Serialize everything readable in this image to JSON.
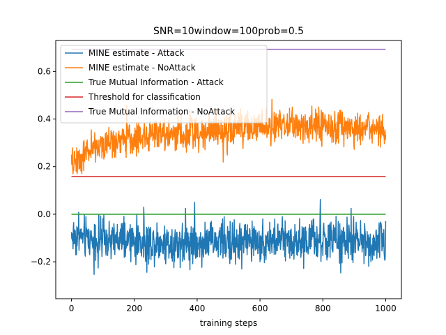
{
  "chart_data": {
    "type": "line",
    "title": "SNR=10window=100prob=0.5",
    "xlabel": "training steps",
    "ylabel": "",
    "xlim": [
      -50,
      1050
    ],
    "ylim": [
      -0.355,
      0.73
    ],
    "xticks": [
      0,
      200,
      400,
      600,
      800,
      1000
    ],
    "xtick_labels": [
      "0",
      "200",
      "400",
      "600",
      "800",
      "1000"
    ],
    "yticks": [
      -0.2,
      0.0,
      0.2,
      0.4,
      0.6
    ],
    "ytick_labels": [
      "−0.2",
      "0.0",
      "0.2",
      "0.4",
      "0.6"
    ],
    "grid": false,
    "legend_position": "top-left",
    "series": [
      {
        "name": "MINE estimate - Attack",
        "color": "#1f77b4",
        "kind": "noisy",
        "n": 1000,
        "base": [
          [
            0,
            -0.09
          ],
          [
            50,
            -0.1
          ],
          [
            100,
            -0.11
          ],
          [
            300,
            -0.12
          ],
          [
            500,
            -0.115
          ],
          [
            700,
            -0.11
          ],
          [
            900,
            -0.115
          ],
          [
            1000,
            -0.12
          ]
        ],
        "noise_amp": 0.075,
        "min": -0.3,
        "max": 0.07
      },
      {
        "name": "MINE estimate - NoAttack",
        "color": "#ff7f0e",
        "kind": "noisy",
        "n": 1000,
        "base": [
          [
            0,
            0.2
          ],
          [
            20,
            0.23
          ],
          [
            60,
            0.27
          ],
          [
            120,
            0.3
          ],
          [
            200,
            0.32
          ],
          [
            300,
            0.34
          ],
          [
            450,
            0.35
          ],
          [
            600,
            0.37
          ],
          [
            800,
            0.37
          ],
          [
            1000,
            0.35
          ]
        ],
        "noise_amp": 0.06,
        "min": 0.17,
        "max": 0.53
      },
      {
        "name": "True Mutual Information - Attack",
        "color": "#2ca02c",
        "kind": "constant",
        "x": [
          0,
          1000
        ],
        "y": [
          0.0,
          0.0
        ]
      },
      {
        "name": "Threshold for classification",
        "color": "#d62728",
        "kind": "constant",
        "x": [
          0,
          1000
        ],
        "y": [
          0.158,
          0.158
        ]
      },
      {
        "name": "True Mutual Information - NoAttack",
        "color": "#9467bd",
        "kind": "constant",
        "x": [
          0,
          1000
        ],
        "y": [
          0.693,
          0.693
        ]
      }
    ]
  }
}
